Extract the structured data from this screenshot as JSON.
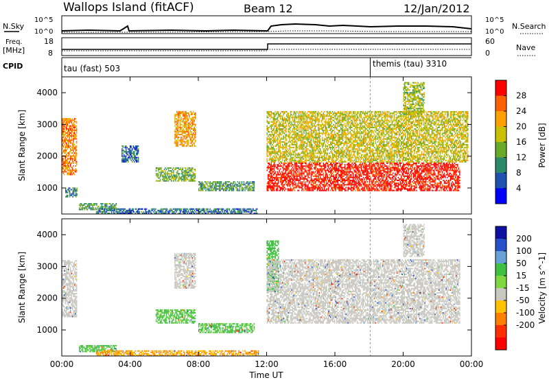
{
  "header": {
    "station": "Wallops Island (fitACF)",
    "beam": "Beam 12",
    "date": "12/Jan/2012"
  },
  "colors": {
    "background": "#ffffff",
    "ink": "#000000",
    "ground_scatter": "#c0c0b8"
  },
  "summary_panels": {
    "noise": {
      "left_label": "N.Sky",
      "right_label": "N.Search",
      "left_ticks": [
        "10^5",
        "10^0"
      ],
      "right_ticks": [
        "10^5",
        "10^0"
      ]
    },
    "freq": {
      "label_line1": "Freq.",
      "label_line2": "[MHz]",
      "right_label": "Nave",
      "left_ticks": [
        "18",
        "8"
      ],
      "right_ticks": [
        "60",
        "0"
      ]
    },
    "cpid": {
      "label": "CPID",
      "segments": [
        {
          "name": "tau (fast) 503",
          "start_hour": 0
        },
        {
          "name": "themis (tau) 3310",
          "start_hour": 18.0
        }
      ]
    }
  },
  "chart_data": [
    {
      "type": "heatmap",
      "title": "",
      "quantity": "Power",
      "colorbar_label": "Power [dB]",
      "colorbar_ticks": [
        "28",
        "24",
        "20",
        "16",
        "12",
        "8",
        "4"
      ],
      "colorbar_colors": [
        "#ff0000",
        "#ff6000",
        "#ffa000",
        "#c8c000",
        "#6aaa2a",
        "#2a8a6a",
        "#2050b0",
        "#0000ff"
      ],
      "ylabel": "Slant Range [km]",
      "xlabel": "",
      "ylim": [
        180,
        4500
      ],
      "xlim_hours": [
        0,
        24
      ],
      "y_ticks": [
        1000,
        2000,
        3000,
        4000
      ],
      "regions": [
        {
          "start_hour": 0.0,
          "end_hour": 0.9,
          "low_km": 1400,
          "high_km": 3200,
          "power_db": 24
        },
        {
          "start_hour": 0.2,
          "end_hour": 0.9,
          "low_km": 700,
          "high_km": 1000,
          "power_db": 10
        },
        {
          "start_hour": 1.0,
          "end_hour": 3.2,
          "low_km": 300,
          "high_km": 500,
          "power_db": 12
        },
        {
          "start_hour": 2.0,
          "end_hour": 11.5,
          "low_km": 180,
          "high_km": 320,
          "power_db": 8
        },
        {
          "start_hour": 3.5,
          "end_hour": 4.5,
          "low_km": 1800,
          "high_km": 2300,
          "power_db": 8
        },
        {
          "start_hour": 5.5,
          "end_hour": 7.8,
          "low_km": 1200,
          "high_km": 1650,
          "power_db": 14
        },
        {
          "start_hour": 6.6,
          "end_hour": 7.8,
          "low_km": 2300,
          "high_km": 3400,
          "power_db": 22
        },
        {
          "start_hour": 8.0,
          "end_hour": 11.3,
          "low_km": 900,
          "high_km": 1200,
          "power_db": 12
        },
        {
          "start_hour": 12.0,
          "end_hour": 23.3,
          "low_km": 900,
          "high_km": 1800,
          "power_db": 30
        },
        {
          "start_hour": 12.0,
          "end_hour": 23.8,
          "low_km": 1800,
          "high_km": 3400,
          "power_db": 18
        },
        {
          "start_hour": 20.0,
          "end_hour": 21.2,
          "low_km": 3300,
          "high_km": 4300,
          "power_db": 16
        }
      ]
    },
    {
      "type": "heatmap",
      "title": "",
      "quantity": "Velocity",
      "colorbar_label": "Velocity [m s^-1]",
      "colorbar_ticks": [
        "200",
        "100",
        "50",
        "15",
        "-15",
        "-50",
        "-100",
        "-200"
      ],
      "colorbar_colors": [
        "#1010a0",
        "#2850c8",
        "#6aa0d8",
        "#40c040",
        "#80d840",
        "#c8c8c0",
        "#ffc000",
        "#ff8000",
        "#ff3000",
        "#ff0000"
      ],
      "ylabel": "Slant Range [km]",
      "xlabel": "Time UT",
      "ylim": [
        180,
        4500
      ],
      "xlim_hours": [
        0,
        24
      ],
      "y_ticks": [
        1000,
        2000,
        3000,
        4000
      ],
      "x_ticks": [
        "00:00",
        "04:00",
        "08:00",
        "12:00",
        "16:00",
        "20:00",
        "00:00"
      ],
      "regions": [
        {
          "start_hour": 0.0,
          "end_hour": 0.9,
          "low_km": 1400,
          "high_km": 3200,
          "velocity": 0
        },
        {
          "start_hour": 1.0,
          "end_hour": 3.2,
          "low_km": 300,
          "high_km": 500,
          "velocity": 30
        },
        {
          "start_hour": 2.0,
          "end_hour": 11.5,
          "low_km": 180,
          "high_km": 320,
          "velocity": -50
        },
        {
          "start_hour": 5.5,
          "end_hour": 7.8,
          "low_km": 1200,
          "high_km": 1650,
          "velocity": 30
        },
        {
          "start_hour": 6.6,
          "end_hour": 7.8,
          "low_km": 2300,
          "high_km": 3400,
          "velocity": 0
        },
        {
          "start_hour": 8.0,
          "end_hour": 11.3,
          "low_km": 900,
          "high_km": 1200,
          "velocity": 30
        },
        {
          "start_hour": 12.0,
          "end_hour": 12.7,
          "low_km": 2200,
          "high_km": 3800,
          "velocity": 40
        },
        {
          "start_hour": 12.0,
          "end_hour": 23.3,
          "low_km": 1200,
          "high_km": 3200,
          "velocity": 0
        },
        {
          "start_hour": 20.0,
          "end_hour": 21.2,
          "low_km": 3300,
          "high_km": 4300,
          "velocity": 0
        }
      ]
    }
  ]
}
